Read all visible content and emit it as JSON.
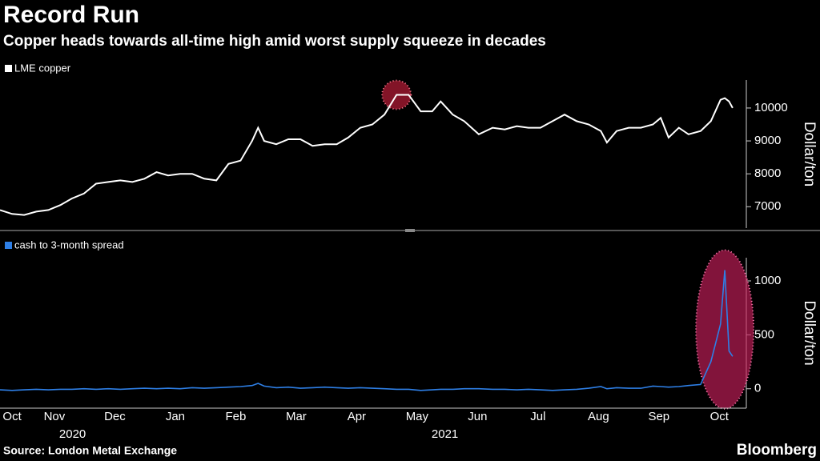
{
  "chart_data": [
    {
      "type": "line",
      "title": "Record Run",
      "subtitle": "Copper heads towards all-time high amid worst supply squeeze in decades",
      "y_label": "Dollar/ton",
      "x": [
        0.6,
        0.8,
        1.0,
        1.2,
        1.4,
        1.6,
        1.79,
        1.99,
        2.19,
        2.39,
        2.59,
        2.79,
        2.99,
        3.19,
        3.38,
        3.58,
        3.78,
        3.98,
        4.18,
        4.38,
        4.58,
        4.77,
        4.87,
        4.97,
        5.17,
        5.37,
        5.57,
        5.77,
        5.97,
        6.17,
        6.36,
        6.56,
        6.76,
        6.96,
        7.16,
        7.36,
        7.56,
        7.75,
        7.89,
        8.09,
        8.28,
        8.52,
        8.75,
        8.95,
        9.15,
        9.34,
        9.54,
        9.74,
        9.94,
        10.14,
        10.34,
        10.54,
        10.64,
        10.8,
        11.0,
        11.2,
        11.4,
        11.53,
        11.66,
        11.83,
        11.99,
        12.19,
        12.36,
        12.52,
        12.59,
        12.66,
        12.72
      ],
      "series": [
        {
          "name": "LME copper",
          "color": "#ffffff",
          "values": [
            6900,
            6780,
            6750,
            6850,
            6900,
            7050,
            7250,
            7400,
            7700,
            7750,
            7800,
            7750,
            7850,
            8050,
            7950,
            8000,
            8000,
            7850,
            7800,
            8300,
            8400,
            9000,
            9400,
            9000,
            8900,
            9050,
            9050,
            8850,
            8900,
            8900,
            9100,
            9400,
            9500,
            9800,
            10400,
            10400,
            9900,
            9900,
            10200,
            9800,
            9600,
            9200,
            9400,
            9350,
            9450,
            9400,
            9400,
            9600,
            9800,
            9600,
            9500,
            9300,
            8950,
            9300,
            9400,
            9400,
            9500,
            9700,
            9100,
            9400,
            9200,
            9300,
            9600,
            10250,
            10300,
            10200,
            10000
          ]
        }
      ],
      "xlim": [
        0.6,
        12.92
      ],
      "ylim": [
        6350,
        10850
      ],
      "yticks": [
        7000,
        8000,
        9000,
        10000
      ],
      "grid": false
    },
    {
      "type": "line",
      "y_label": "Dollar/ton",
      "source": "Source: London Metal Exchange",
      "credit": "Bloomberg",
      "x": [
        0.6,
        0.8,
        1.0,
        1.2,
        1.4,
        1.6,
        1.79,
        1.99,
        2.19,
        2.39,
        2.59,
        2.79,
        2.99,
        3.19,
        3.38,
        3.58,
        3.78,
        3.98,
        4.18,
        4.38,
        4.58,
        4.77,
        4.87,
        4.97,
        5.17,
        5.37,
        5.57,
        5.77,
        5.97,
        6.17,
        6.36,
        6.56,
        6.76,
        6.96,
        7.16,
        7.36,
        7.56,
        7.75,
        7.89,
        8.09,
        8.28,
        8.52,
        8.75,
        8.95,
        9.15,
        9.34,
        9.54,
        9.74,
        9.94,
        10.14,
        10.34,
        10.54,
        10.64,
        10.8,
        11.0,
        11.2,
        11.4,
        11.53,
        11.66,
        11.83,
        11.99,
        12.19,
        12.36,
        12.52,
        12.59,
        12.66,
        12.72
      ],
      "series": [
        {
          "name": "cash to 3-month spread",
          "color": "#2e7fe6",
          "values": [
            -10,
            -15,
            -10,
            -5,
            -10,
            -5,
            -5,
            0,
            -5,
            0,
            -5,
            0,
            5,
            0,
            5,
            0,
            10,
            5,
            10,
            15,
            20,
            30,
            50,
            25,
            10,
            15,
            5,
            10,
            15,
            10,
            5,
            10,
            5,
            0,
            -5,
            -5,
            -15,
            -10,
            -5,
            -5,
            0,
            0,
            -5,
            -5,
            -10,
            -5,
            -10,
            -15,
            -10,
            -5,
            5,
            20,
            0,
            10,
            5,
            5,
            25,
            20,
            15,
            20,
            30,
            40,
            250,
            600,
            1100,
            350,
            300
          ]
        }
      ],
      "xlim": [
        0.6,
        12.92
      ],
      "ylim": [
        -180,
        1215
      ],
      "yticks": [
        0,
        500,
        1000
      ],
      "grid": false,
      "xticks": [
        {
          "value": 0.8,
          "label": "Oct"
        },
        {
          "value": 1.5,
          "label": "Nov"
        },
        {
          "value": 2.5,
          "label": "Dec"
        },
        {
          "value": 3.5,
          "label": "Jan"
        },
        {
          "value": 4.5,
          "label": "Feb"
        },
        {
          "value": 5.5,
          "label": "Mar"
        },
        {
          "value": 6.5,
          "label": "Apr"
        },
        {
          "value": 7.5,
          "label": "May"
        },
        {
          "value": 8.5,
          "label": "Jun"
        },
        {
          "value": 9.5,
          "label": "Jul"
        },
        {
          "value": 10.5,
          "label": "Aug"
        },
        {
          "value": 11.5,
          "label": "Sep"
        },
        {
          "value": 12.5,
          "label": "Oct"
        }
      ],
      "year_ticks": [
        {
          "value": 1.8,
          "label": "2020"
        },
        {
          "value": 7.96,
          "label": "2021"
        }
      ]
    }
  ]
}
